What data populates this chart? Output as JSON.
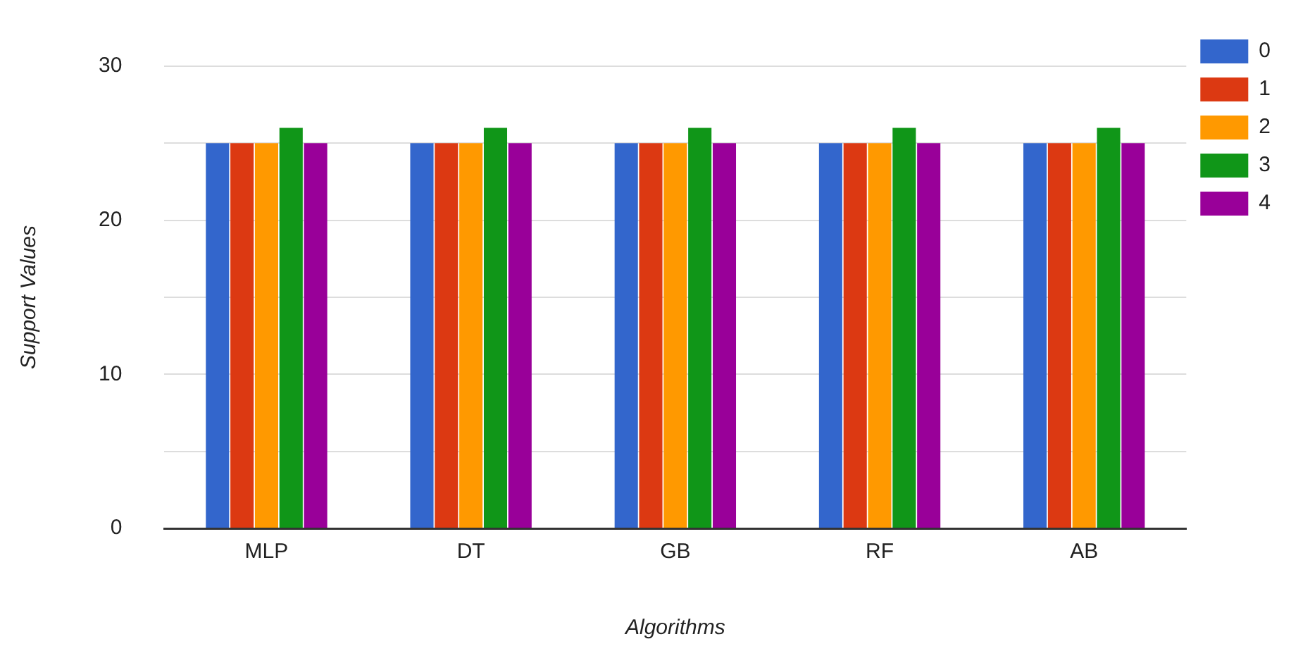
{
  "chart_data": {
    "type": "bar",
    "xlabel": "Algorithms",
    "ylabel": "Support Values",
    "categories": [
      "MLP",
      "DT",
      "GB",
      "RF",
      "AB"
    ],
    "series": [
      {
        "name": "0",
        "color": "#3366cc",
        "values": [
          25,
          25,
          25,
          25,
          25
        ]
      },
      {
        "name": "1",
        "color": "#dc3912",
        "values": [
          25,
          25,
          25,
          25,
          25
        ]
      },
      {
        "name": "2",
        "color": "#ff9900",
        "values": [
          25,
          25,
          25,
          25,
          25
        ]
      },
      {
        "name": "3",
        "color": "#109618",
        "values": [
          26,
          26,
          26,
          26,
          26
        ]
      },
      {
        "name": "4",
        "color": "#990099",
        "values": [
          25,
          25,
          25,
          25,
          25
        ]
      }
    ],
    "ylim": [
      0,
      30
    ],
    "yticks": [
      0,
      {
        "value": 5,
        "label": null
      },
      10,
      {
        "value": 15,
        "label": null
      },
      20,
      {
        "value": 25,
        "label": null
      },
      30
    ],
    "grid": "y",
    "legend": "top right"
  }
}
